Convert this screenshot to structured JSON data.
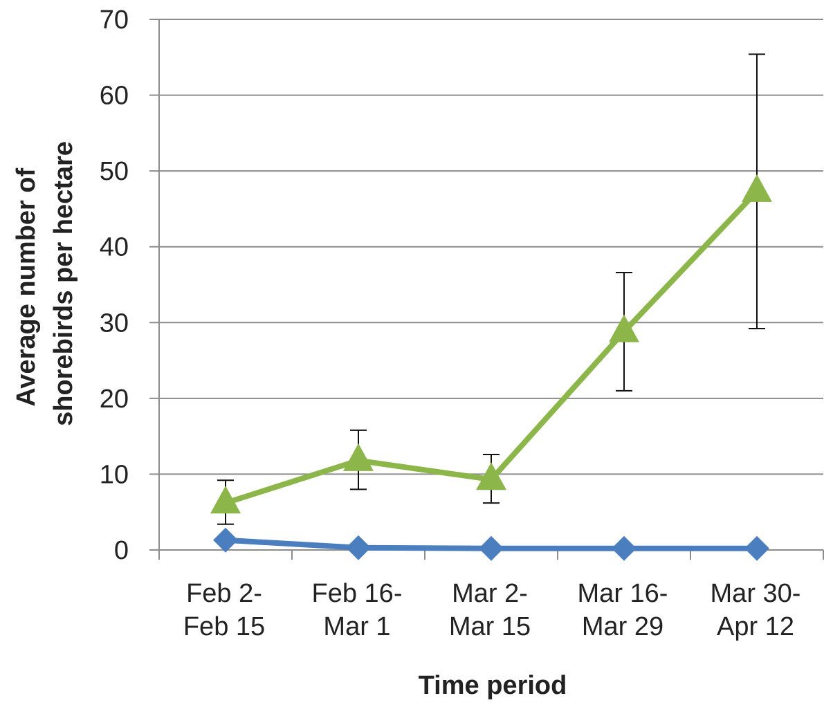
{
  "chart_data": {
    "type": "line",
    "title": "",
    "xlabel": "Time period",
    "ylabel_lines": [
      "Average number of",
      "shorebirds per hectare"
    ],
    "categories": [
      [
        "Feb 2-",
        "Feb 15"
      ],
      [
        "Feb 16-",
        "Mar 1"
      ],
      [
        "Mar 2-",
        "Mar 15"
      ],
      [
        "Mar 16-",
        "Mar 29"
      ],
      [
        "Mar 30-",
        "Apr 12"
      ]
    ],
    "ylim": [
      0,
      70
    ],
    "yticks": [
      0,
      10,
      20,
      30,
      40,
      50,
      60,
      70
    ],
    "grid": true,
    "legend": "none",
    "series": [
      {
        "marker": "triangle",
        "color": "#8cb64a",
        "values": [
          6.2,
          11.8,
          9.3,
          28.8,
          47.3
        ],
        "error_low": [
          3.4,
          8.0,
          6.2,
          21.0,
          29.2
        ],
        "error_high": [
          9.2,
          15.8,
          12.6,
          36.6,
          65.4
        ]
      },
      {
        "marker": "diamond",
        "color": "#4a7ebf",
        "values": [
          1.3,
          0.3,
          0.2,
          0.2,
          0.2
        ]
      }
    ]
  }
}
